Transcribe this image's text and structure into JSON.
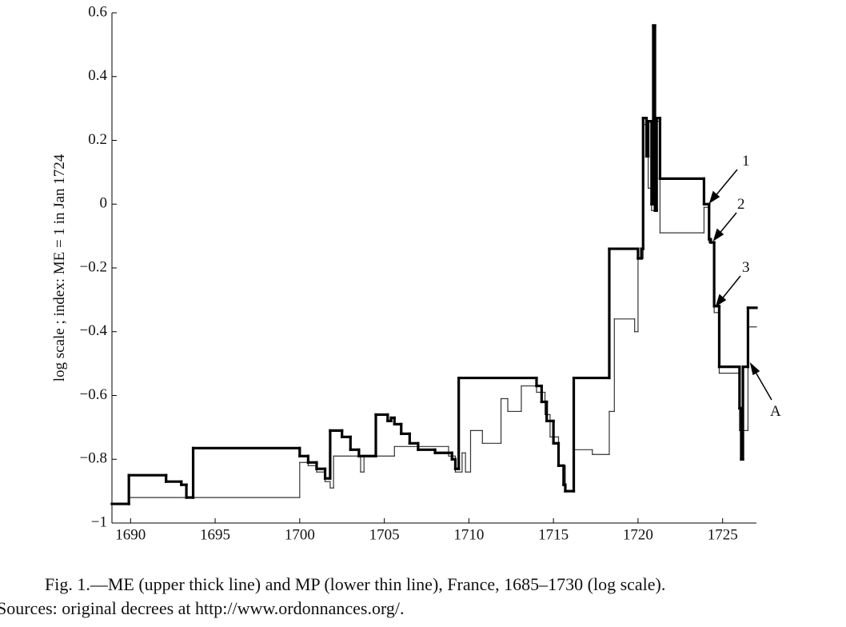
{
  "chart_data": {
    "type": "step",
    "y_label": "log scale ; index: ME = 1 in Jan 1724",
    "caption": "Fig. 1.—ME (upper thick line) and MP (lower thin line), France, 1685–1730 (log scale).",
    "sources": "Sources: original decrees at http://www.ordonnances.org/.",
    "annotations": [
      "1",
      "2",
      "3",
      "A"
    ],
    "xlim": [
      1688.9,
      1727
    ],
    "xticks": [
      1690,
      1695,
      1700,
      1705,
      1710,
      1715,
      1720,
      1725
    ],
    "ylim": [
      -1,
      0.6
    ],
    "yticks": [
      {
        "value": -1,
        "label": "−1"
      },
      {
        "value": -0.8,
        "label": "−0.8"
      },
      {
        "value": -0.6,
        "label": "−0.6"
      },
      {
        "value": -0.4,
        "label": "−0.4"
      },
      {
        "value": -0.2,
        "label": "−0.2"
      },
      0,
      0.2,
      0.4,
      0.6
    ],
    "series": [
      {
        "name": "ME",
        "color": "#000000",
        "width": 3.2,
        "x": [
          1688.9,
          1689.9,
          1692.1,
          1693,
          1693.3,
          1693.7,
          1700,
          1700.5,
          1701,
          1701.5,
          1701.8,
          1702.5,
          1703,
          1703.5,
          1704.5,
          1705.2,
          1705.4,
          1705.6,
          1706,
          1706.5,
          1707,
          1708,
          1709,
          1709.2,
          1709.4,
          1714,
          1714.3,
          1714.6,
          1715,
          1715.3,
          1715.6,
          1715.7,
          1716.2,
          1718.3,
          1720,
          1720.2,
          1720.3,
          1720.5,
          1720.6,
          1720.8,
          1720.9,
          1721,
          1721.1,
          1721.3,
          1723.9,
          1724.2,
          1724.3,
          1724.5,
          1724.8,
          1726,
          1726.1,
          1726.2,
          1726.5
        ],
        "values": [
          -0.94,
          -0.85,
          -0.87,
          -0.88,
          -0.92,
          -0.765,
          -0.79,
          -0.81,
          -0.83,
          -0.86,
          -0.71,
          -0.73,
          -0.77,
          -0.79,
          -0.66,
          -0.68,
          -0.67,
          -0.69,
          -0.72,
          -0.75,
          -0.77,
          -0.78,
          -0.8,
          -0.83,
          -0.545,
          -0.57,
          -0.62,
          -0.68,
          -0.75,
          -0.82,
          -0.88,
          -0.9,
          -0.545,
          -0.14,
          -0.17,
          -0.14,
          0.27,
          0.15,
          0.26,
          0.0,
          0.56,
          -0.02,
          0.27,
          0.08,
          0.0,
          -0.11,
          -0.12,
          -0.32,
          -0.51,
          -0.64,
          -0.8,
          -0.51,
          -0.325
        ]
      },
      {
        "name": "MP",
        "color": "#333333",
        "width": 1.2,
        "x": [
          1688.9,
          1689.9,
          1700,
          1700.5,
          1701,
          1701.5,
          1701.8,
          1702,
          1703.6,
          1703.8,
          1705.6,
          1708.8,
          1709.2,
          1709.6,
          1709.8,
          1710.1,
          1710.8,
          1711.9,
          1712.3,
          1713.1,
          1714,
          1714.5,
          1714.8,
          1715.3,
          1715.7,
          1716.2,
          1717.3,
          1718.3,
          1718.6,
          1719.8,
          1720,
          1720.3,
          1720.6,
          1720.8,
          1721,
          1721.3,
          1723.9,
          1724.2,
          1724.5,
          1724.8,
          1726,
          1726.5
        ],
        "values": [
          -0.94,
          -0.92,
          -0.81,
          -0.82,
          -0.84,
          -0.87,
          -0.89,
          -0.79,
          -0.84,
          -0.79,
          -0.76,
          -0.79,
          -0.84,
          -0.78,
          -0.84,
          -0.71,
          -0.75,
          -0.61,
          -0.65,
          -0.57,
          -0.59,
          -0.66,
          -0.73,
          -0.82,
          -0.9,
          -0.77,
          -0.785,
          -0.65,
          -0.36,
          -0.4,
          -0.17,
          0.25,
          0.05,
          -0.02,
          0.26,
          -0.09,
          -0.01,
          -0.12,
          -0.34,
          -0.53,
          -0.71,
          -0.385
        ]
      }
    ]
  }
}
